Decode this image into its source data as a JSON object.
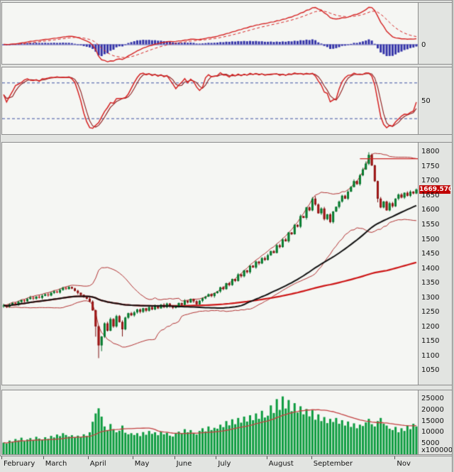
{
  "axis": {
    "macd_zero_label": "0",
    "stoch_mid_label": "50",
    "price_ticks": [
      1800,
      1750,
      1700,
      1650,
      1600,
      1550,
      1500,
      1450,
      1400,
      1350,
      1300,
      1250,
      1200,
      1150,
      1100,
      1050
    ],
    "volume_ticks": [
      25000,
      20000,
      15000,
      10000,
      5000
    ],
    "volume_multiplier": "x100000",
    "last_price_label": "1669.570"
  },
  "chart_data": {
    "type": "candlestick-multi-panel",
    "panels": [
      "macd",
      "stochastic",
      "price",
      "volume"
    ],
    "months": [
      {
        "label": "February",
        "i": 0
      },
      {
        "label": "March",
        "i": 14
      },
      {
        "label": "April",
        "i": 29
      },
      {
        "label": "May",
        "i": 44
      },
      {
        "label": "June",
        "i": 58
      },
      {
        "label": "July",
        "i": 72
      },
      {
        "label": "August",
        "i": 89
      },
      {
        "label": "September",
        "i": 104
      },
      {
        "label": "Nov",
        "i": 132
      }
    ],
    "price": {
      "ylim": [
        1000,
        1830
      ],
      "last": 1669.57,
      "high_line": 1775,
      "close": [
        1272,
        1268,
        1275,
        1280,
        1276,
        1284,
        1290,
        1286,
        1294,
        1299,
        1295,
        1302,
        1298,
        1305,
        1310,
        1306,
        1315,
        1320,
        1316,
        1325,
        1332,
        1328,
        1335,
        1330,
        1322,
        1315,
        1308,
        1300,
        1295,
        1285,
        1255,
        1200,
        1135,
        1165,
        1210,
        1185,
        1225,
        1200,
        1235,
        1215,
        1190,
        1230,
        1245,
        1238,
        1248,
        1258,
        1250,
        1262,
        1254,
        1266,
        1258,
        1270,
        1262,
        1274,
        1266,
        1278,
        1270,
        1264,
        1270,
        1280,
        1274,
        1288,
        1282,
        1294,
        1286,
        1276,
        1288,
        1296,
        1302,
        1310,
        1304,
        1314,
        1320,
        1334,
        1328,
        1348,
        1342,
        1362,
        1356,
        1378,
        1372,
        1392,
        1386,
        1408,
        1402,
        1422,
        1416,
        1434,
        1428,
        1444,
        1458,
        1452,
        1478,
        1472,
        1498,
        1492,
        1522,
        1516,
        1548,
        1542,
        1578,
        1572,
        1608,
        1598,
        1638,
        1618,
        1588,
        1604,
        1568,
        1584,
        1558,
        1594,
        1610,
        1628,
        1648,
        1638,
        1662,
        1678,
        1698,
        1688,
        1718,
        1738,
        1758,
        1788,
        1752,
        1698,
        1638,
        1608,
        1628,
        1598,
        1622,
        1612,
        1638,
        1652,
        1642,
        1658,
        1648,
        1662,
        1656,
        1669.57
      ],
      "wick_low_extra": {
        "31": 30,
        "32": 42,
        "33": 15,
        "40": 20,
        "126": 8
      },
      "wick_high_extra": {
        "105": 6,
        "122": 6,
        "123": 8
      }
    },
    "volume": {
      "ylim": [
        0,
        28500
      ],
      "values": [
        5200,
        4800,
        6100,
        5600,
        6800,
        6200,
        7400,
        5900,
        6600,
        7200,
        6400,
        7800,
        7000,
        6500,
        7600,
        6900,
        8200,
        7500,
        8800,
        8100,
        9400,
        8600,
        7900,
        8500,
        7700,
        8300,
        7600,
        8900,
        8200,
        9800,
        14500,
        18200,
        20500,
        16800,
        12400,
        10800,
        13500,
        11200,
        9800,
        10500,
        12800,
        9600,
        8900,
        9400,
        8600,
        9400,
        8100,
        9900,
        8700,
        10400,
        9100,
        9800,
        8500,
        10200,
        8900,
        9600,
        8300,
        7900,
        9200,
        10100,
        9400,
        11200,
        9800,
        10800,
        9500,
        8800,
        10400,
        11600,
        10200,
        12400,
        10800,
        11800,
        11400,
        13200,
        12100,
        14800,
        12900,
        15600,
        13400,
        16200,
        14100,
        16800,
        14600,
        17400,
        15200,
        18200,
        15800,
        19400,
        16400,
        17200,
        21800,
        18400,
        24600,
        19800,
        25800,
        20400,
        24200,
        19200,
        22800,
        18600,
        21400,
        17800,
        20200,
        16900,
        19600,
        15400,
        17800,
        14800,
        16600,
        13900,
        15800,
        14400,
        16200,
        13600,
        15200,
        12800,
        14600,
        12200,
        13800,
        11600,
        13200,
        12600,
        14200,
        15800,
        13400,
        12400,
        14800,
        16200,
        13600,
        12800,
        11400,
        10800,
        12200,
        9800,
        11600,
        10400,
        12800,
        11200,
        13600,
        12400
      ]
    },
    "indicators": {
      "macd": {
        "fast": 12,
        "slow": 26,
        "signal": 9
      },
      "stochastic": {
        "k": 14,
        "smooth": 3,
        "upper": 80,
        "lower": 20
      },
      "bollinger": {
        "period": 20,
        "mult": 2
      },
      "ma_mid": {
        "period": 50
      },
      "ma_long": {
        "period": 130
      },
      "vol_ma": {
        "period": 20
      }
    },
    "colors": {
      "up": "#0b9b3e",
      "up_edge": "#056a27",
      "down": "#cf2020",
      "down_edge": "#7c1010",
      "bollinger": "#b03030",
      "ma_mid": "#101010",
      "ma_long": "#cc1515",
      "macd_hist": "#3333a8",
      "macd_line": "#d42020",
      "macd_signal": "#d42020",
      "stoch_k": "#d42020",
      "stoch_d": "#8c1616",
      "threshold": "#3a4fa0",
      "volume_bar": "#0b9b3e",
      "volume_ma": "#c24040",
      "last_price_bg": "#c00000",
      "high_line": "#cc2222",
      "zero_line": "#7070b8"
    }
  }
}
